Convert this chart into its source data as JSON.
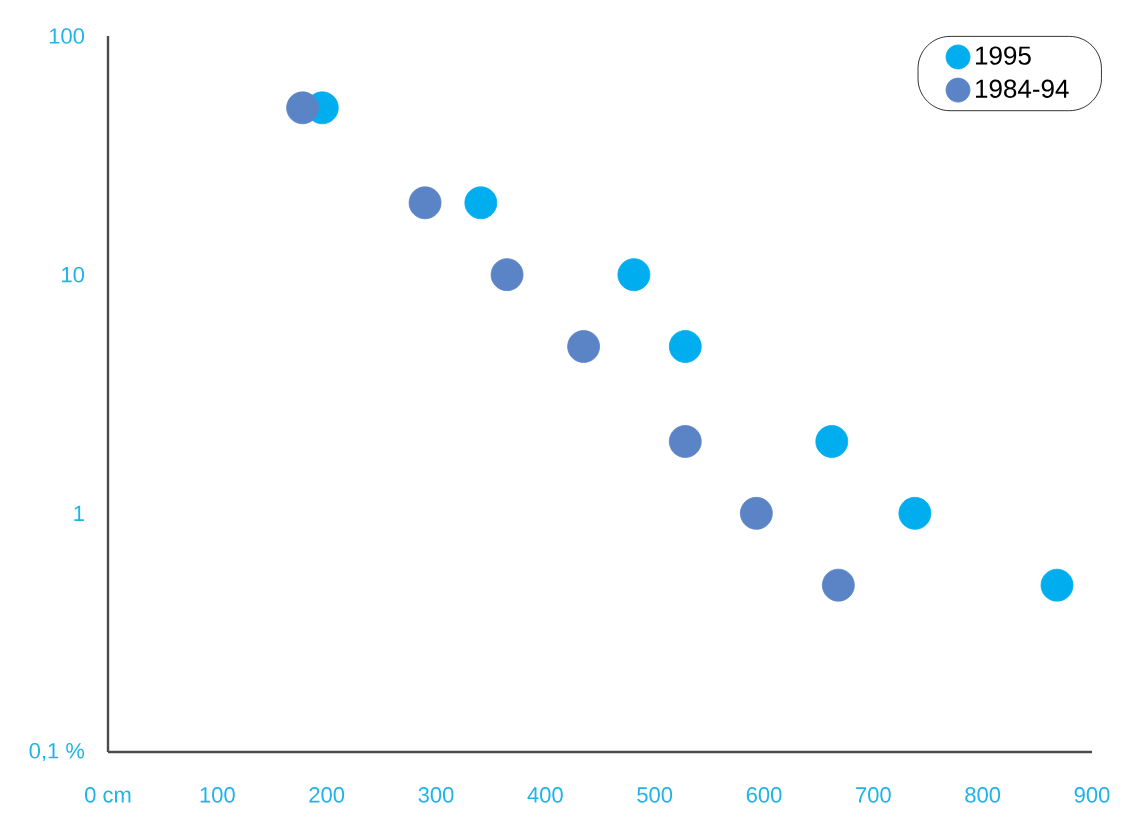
{
  "chart_data": {
    "type": "scatter",
    "legend": "top right",
    "log": "y",
    "grid": false,
    "xlim": [
      0,
      900
    ],
    "ylim": [
      0.1,
      100
    ],
    "xticks": [
      {
        "value": 0,
        "label": "0 cm"
      },
      100,
      200,
      300,
      400,
      500,
      600,
      700,
      800,
      900
    ],
    "yticks": [
      {
        "value": 0.1,
        "label": "0,1 %"
      },
      1,
      10,
      100
    ],
    "series": [
      {
        "name": "1995",
        "color": "#00aeef",
        "x": [
          196,
          341,
          481,
          528,
          662,
          738,
          868
        ],
        "values": [
          50,
          20,
          10,
          5,
          2,
          1,
          0.5
        ]
      },
      {
        "name": "1984-94",
        "color": "#5a84c6",
        "x": [
          178,
          290,
          365,
          435,
          528,
          593,
          668
        ],
        "values": [
          50,
          20,
          10,
          5,
          2,
          1,
          0.5
        ]
      }
    ]
  }
}
